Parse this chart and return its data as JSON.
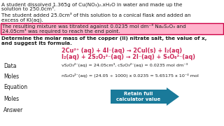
{
  "bg_color": "#ffffff",
  "highlight_color": "#ffb3cc",
  "highlight_border": "#cc0044",
  "pink_text": "#cc2255",
  "dark_text": "#1a1a1a",
  "teal_arrow": "#1a7a9a",
  "line1": "A student dissolved 1.365g of Cu(NO₃)₂.xH₂O in water and made up the",
  "line2": "solution to 250.0cm³.",
  "line3": "The student added 25.0cm³ of this solution to a conical flask and added an",
  "line4": "excess of KI(aq).",
  "highlight_line1": "The resulting mixture was titrated against 0.0235 mol dm⁻³ Na₂S₂O₃ and",
  "highlight_line2": "24.05cm³ was required to reach the end point.",
  "bold_line1": "Determine the molar mass of the copper (II) nitrate salt, the value of x,",
  "bold_line2": "and suggest its formula.",
  "eq1": "2Cu²⁺ (aq) + 4I⁻(aq) → 2CuI(s) + I₂(aq)",
  "eq2": "I₂(aq) + 2S₂O₃²⁻(aq) → 2I⁻(aq) + S₄O₆²⁻(aq)",
  "data_label": "Data",
  "data_val": "vS₂O₃²⁻(aq) = 24.05cm³, cS₂O₃²⁻(aq) = 0.0235 mol dm⁻³",
  "moles_label": "Moles",
  "moles_val": "nS₂O₃²⁻(aq) = (24.05 ÷ 1000) x 0.0235 = 5.65175 x 10⁻⁴ mol",
  "equation_label": "Equation",
  "moles_label2": "Moles",
  "answer_label": "Answer",
  "arrow_text": "Retain full\ncalculator value",
  "figw": 3.2,
  "figh": 1.8,
  "dpi": 100
}
